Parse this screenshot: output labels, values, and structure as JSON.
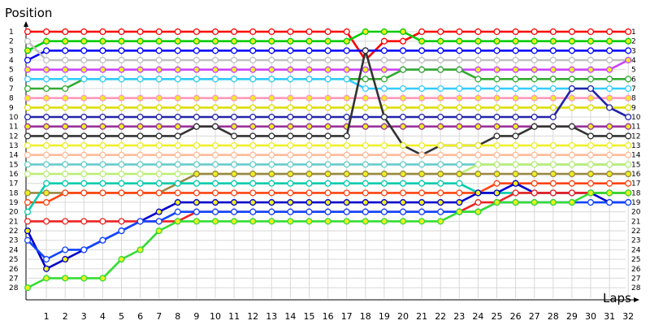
{
  "chart_data": {
    "type": "line",
    "ylabel": "Position",
    "xlabel": "Laps",
    "x_ticks": [
      "1",
      "2",
      "3",
      "4",
      "5",
      "6",
      "7",
      "8",
      "9",
      "10",
      "11",
      "12",
      "13",
      "14",
      "15",
      "16",
      "17",
      "18",
      "19",
      "20",
      "21",
      "22",
      "23",
      "24",
      "25",
      "26",
      "27",
      "28",
      "29",
      "30",
      "31",
      "32"
    ],
    "y_ticks": [
      "1",
      "2",
      "3",
      "4",
      "5",
      "6",
      "7",
      "8",
      "9",
      "10",
      "11",
      "12",
      "13",
      "14",
      "15",
      "16",
      "17",
      "18",
      "19",
      "20",
      "21",
      "22",
      "23",
      "24",
      "25",
      "26",
      "27",
      "28"
    ],
    "xlim": [
      0,
      33
    ],
    "ylim": [
      28,
      1
    ],
    "grid": true,
    "marker": "circle",
    "series": [
      {
        "color": "#ff0000",
        "values": [
          1,
          1,
          1,
          1,
          1,
          1,
          1,
          1,
          1,
          1,
          1,
          1,
          1,
          1,
          1,
          1,
          1,
          1,
          4,
          2,
          2,
          1,
          1,
          1,
          1,
          1,
          1,
          1,
          1,
          1,
          1,
          1,
          1
        ]
      },
      {
        "color": "#00cc00",
        "values": [
          3,
          2,
          2,
          2,
          2,
          2,
          2,
          2,
          2,
          2,
          2,
          2,
          2,
          2,
          2,
          2,
          2,
          2,
          1,
          1,
          1,
          2,
          2,
          2,
          2,
          2,
          2,
          2,
          2,
          2,
          2,
          2,
          2
        ]
      },
      {
        "color": "#0000ff",
        "values": [
          4,
          3,
          3,
          3,
          3,
          3,
          3,
          3,
          3,
          3,
          3,
          3,
          3,
          3,
          3,
          3,
          3,
          3,
          3,
          3,
          3,
          3,
          3,
          3,
          3,
          3,
          3,
          3,
          3,
          3,
          3,
          3,
          3
        ]
      },
      {
        "color": "#c0c0c0",
        "values": [
          2,
          4,
          4,
          4,
          4,
          4,
          4,
          4,
          4,
          4,
          4,
          4,
          4,
          4,
          4,
          4,
          4,
          4,
          4,
          4,
          4,
          4,
          4,
          4,
          4,
          4,
          4,
          4,
          4,
          4,
          4,
          4,
          4
        ]
      },
      {
        "color": "#cc44ff",
        "values": [
          5,
          5,
          5,
          5,
          5,
          5,
          5,
          5,
          5,
          5,
          5,
          5,
          5,
          5,
          5,
          5,
          5,
          5,
          5,
          5,
          5,
          5,
          5,
          5,
          5,
          5,
          5,
          5,
          5,
          5,
          5,
          5,
          4
        ]
      },
      {
        "color": "#33aa33",
        "values": [
          7,
          7,
          7,
          6,
          6,
          6,
          6,
          6,
          6,
          6,
          6,
          6,
          6,
          6,
          6,
          6,
          6,
          6,
          6,
          6,
          5,
          5,
          5,
          5,
          6,
          6,
          6,
          6,
          6,
          6,
          6,
          6,
          6
        ]
      },
      {
        "color": "#33ccff",
        "values": [
          6,
          6,
          6,
          6,
          6,
          6,
          6,
          6,
          6,
          6,
          6,
          6,
          6,
          6,
          6,
          6,
          6,
          6,
          7,
          7,
          7,
          7,
          7,
          7,
          7,
          7,
          7,
          7,
          7,
          7,
          7,
          7,
          7
        ]
      },
      {
        "color": "#ff99bb",
        "values": [
          8,
          8,
          8,
          8,
          8,
          8,
          8,
          8,
          8,
          8,
          8,
          8,
          8,
          8,
          8,
          8,
          8,
          8,
          8,
          8,
          8,
          8,
          8,
          8,
          8,
          8,
          8,
          8,
          8,
          8,
          8,
          8,
          8
        ]
      },
      {
        "color": "#dddd00",
        "values": [
          9,
          9,
          9,
          9,
          9,
          9,
          9,
          9,
          9,
          9,
          9,
          9,
          9,
          9,
          9,
          9,
          9,
          9,
          9,
          9,
          9,
          9,
          9,
          9,
          9,
          9,
          9,
          9,
          9,
          9,
          9,
          9,
          9
        ]
      },
      {
        "color": "#2222aa",
        "values": [
          10,
          10,
          10,
          10,
          10,
          10,
          10,
          10,
          10,
          10,
          10,
          10,
          10,
          10,
          10,
          10,
          10,
          10,
          10,
          10,
          10,
          10,
          10,
          10,
          10,
          10,
          10,
          10,
          10,
          7,
          7,
          9,
          10
        ]
      },
      {
        "color": "#993399",
        "values": [
          11,
          11,
          11,
          11,
          11,
          11,
          11,
          11,
          11,
          11,
          11,
          11,
          11,
          11,
          11,
          11,
          11,
          11,
          11,
          11,
          11,
          11,
          11,
          11,
          11,
          11,
          11,
          11,
          11,
          11,
          11,
          11,
          11
        ]
      },
      {
        "color": "#333333",
        "values": [
          12,
          12,
          12,
          12,
          12,
          12,
          12,
          12,
          12,
          11,
          11,
          12,
          12,
          12,
          12,
          12,
          12,
          12,
          3,
          10,
          13,
          14,
          13,
          13,
          13,
          12,
          12,
          11,
          11,
          11,
          12,
          12,
          12
        ]
      },
      {
        "color": "#eeee22",
        "values": [
          13,
          13,
          13,
          13,
          13,
          13,
          13,
          13,
          13,
          13,
          13,
          13,
          13,
          13,
          13,
          13,
          13,
          13,
          13,
          13,
          13,
          13,
          13,
          13,
          13,
          13,
          13,
          13,
          13,
          13,
          13,
          13,
          13
        ]
      },
      {
        "color": "#ffbb99",
        "values": [
          14,
          14,
          14,
          14,
          14,
          14,
          14,
          14,
          14,
          14,
          14,
          14,
          14,
          14,
          14,
          14,
          14,
          14,
          14,
          14,
          14,
          14,
          14,
          14,
          14,
          14,
          14,
          14,
          14,
          14,
          14,
          14,
          14
        ]
      },
      {
        "color": "#66cccc",
        "values": [
          15,
          15,
          15,
          15,
          15,
          15,
          15,
          15,
          15,
          15,
          15,
          15,
          15,
          15,
          15,
          15,
          15,
          15,
          15,
          15,
          15,
          15,
          15,
          15,
          15,
          15,
          15,
          15,
          15,
          15,
          15,
          15,
          15
        ]
      },
      {
        "color": "#bbee77",
        "values": [
          16,
          16,
          16,
          16,
          16,
          16,
          16,
          16,
          16,
          16,
          16,
          16,
          16,
          16,
          16,
          16,
          16,
          16,
          16,
          16,
          16,
          16,
          16,
          16,
          15,
          15,
          15,
          15,
          15,
          15,
          15,
          15,
          15
        ]
      },
      {
        "color": "#998844",
        "values": [
          18,
          18,
          18,
          18,
          18,
          18,
          18,
          18,
          17,
          16,
          16,
          16,
          16,
          16,
          16,
          16,
          16,
          16,
          16,
          16,
          16,
          16,
          16,
          16,
          16,
          16,
          16,
          16,
          16,
          16,
          16,
          16,
          16
        ]
      },
      {
        "color": "#ff4411",
        "values": [
          19,
          19,
          18,
          18,
          18,
          18,
          18,
          18,
          18,
          18,
          18,
          18,
          18,
          18,
          18,
          18,
          18,
          18,
          18,
          18,
          18,
          18,
          18,
          18,
          18,
          17,
          17,
          17,
          17,
          17,
          17,
          17,
          17
        ]
      },
      {
        "color": "#00ccaa",
        "values": [
          20,
          17,
          17,
          17,
          17,
          17,
          17,
          17,
          17,
          17,
          17,
          17,
          17,
          17,
          17,
          17,
          17,
          17,
          17,
          17,
          17,
          17,
          17,
          17,
          18,
          18,
          18,
          18,
          18,
          18,
          18,
          18,
          18
        ]
      },
      {
        "color": "#0000cc",
        "values": [
          22,
          26,
          25,
          24,
          23,
          22,
          21,
          20,
          19,
          19,
          19,
          19,
          19,
          19,
          19,
          19,
          19,
          19,
          19,
          19,
          19,
          19,
          19,
          19,
          18,
          18,
          17,
          18,
          18,
          18,
          18,
          19,
          19
        ]
      },
      {
        "color": "#ee2222",
        "values": [
          21,
          21,
          21,
          21,
          21,
          21,
          21,
          21,
          21,
          20,
          20,
          20,
          20,
          20,
          20,
          20,
          20,
          20,
          20,
          20,
          20,
          20,
          20,
          20,
          19,
          19,
          18,
          18,
          18,
          18,
          18,
          18,
          18
        ]
      },
      {
        "color": "#1144ff",
        "values": [
          23,
          25,
          24,
          24,
          23,
          22,
          21,
          21,
          20,
          20,
          20,
          20,
          20,
          20,
          20,
          20,
          20,
          20,
          20,
          20,
          20,
          20,
          20,
          20,
          20,
          19,
          19,
          19,
          19,
          19,
          19,
          19,
          19
        ]
      },
      {
        "color": "#33dd33",
        "values": [
          28,
          27,
          27,
          27,
          27,
          25,
          24,
          22,
          21,
          21,
          21,
          21,
          21,
          21,
          21,
          21,
          21,
          21,
          21,
          21,
          21,
          21,
          21,
          20,
          20,
          19,
          19,
          19,
          19,
          19,
          18,
          18,
          18
        ]
      }
    ]
  }
}
